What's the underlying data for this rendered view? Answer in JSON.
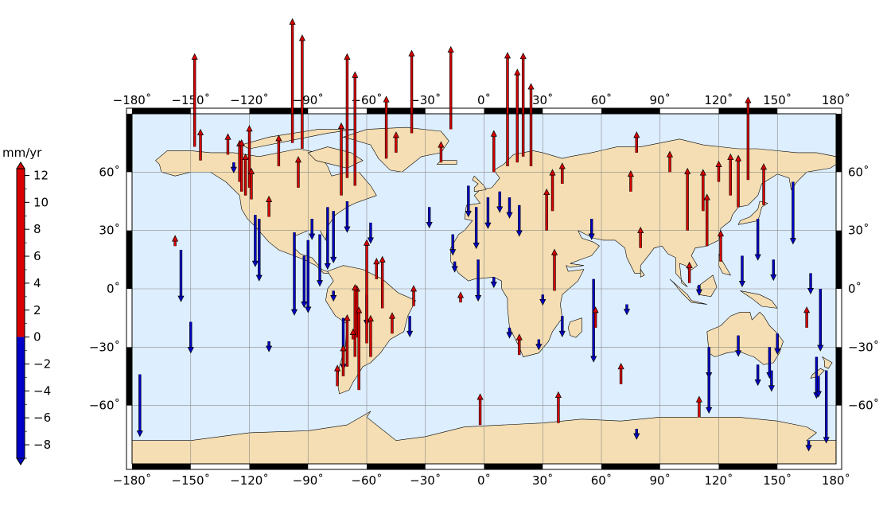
{
  "colorbar": {
    "unit": "mm/yr",
    "ticks": [
      12,
      10,
      8,
      6,
      4,
      2,
      0,
      -2,
      -4,
      -6,
      -8
    ],
    "range": [
      -9,
      12.5
    ],
    "positive_color": "#d80000",
    "negative_color": "#0000c8"
  },
  "map": {
    "lon_range": [
      -180,
      180
    ],
    "lat_range": [
      -90,
      90
    ],
    "x_ticks": [
      -180,
      -150,
      -120,
      -90,
      -60,
      -30,
      0,
      30,
      60,
      90,
      120,
      150,
      180
    ],
    "y_ticks": [
      60,
      30,
      0,
      -30,
      -60
    ],
    "ocean_color": "#ddeeff",
    "land_color": "#f5deb3",
    "grid": true
  },
  "chart_data": {
    "type": "scatter",
    "variable": "vertical velocity",
    "unit": "mm/yr",
    "points": [
      {
        "lon": -148,
        "lat": 73,
        "v": 9
      },
      {
        "lon": -145,
        "lat": 66,
        "v": 3
      },
      {
        "lon": -131,
        "lat": 69,
        "v": 2
      },
      {
        "lon": -128,
        "lat": 65,
        "v": -1
      },
      {
        "lon": -125,
        "lat": 55,
        "v": 4
      },
      {
        "lon": -124,
        "lat": 50,
        "v": 5
      },
      {
        "lon": -122,
        "lat": 48,
        "v": 4
      },
      {
        "lon": -120,
        "lat": 52,
        "v": 6
      },
      {
        "lon": -119,
        "lat": 46,
        "v": 3
      },
      {
        "lon": -117,
        "lat": 38,
        "v": -5
      },
      {
        "lon": -115,
        "lat": 36,
        "v": -6
      },
      {
        "lon": -110,
        "lat": 37,
        "v": 2
      },
      {
        "lon": -105,
        "lat": 63,
        "v": 3
      },
      {
        "lon": -98,
        "lat": 75,
        "v": 12
      },
      {
        "lon": -93,
        "lat": 72,
        "v": 11
      },
      {
        "lon": -95,
        "lat": 52,
        "v": 3
      },
      {
        "lon": -88,
        "lat": 36,
        "v": -2
      },
      {
        "lon": -97,
        "lat": 29,
        "v": -8
      },
      {
        "lon": -92,
        "lat": 17,
        "v": -5
      },
      {
        "lon": -90,
        "lat": 25,
        "v": -7
      },
      {
        "lon": -84,
        "lat": 28,
        "v": -5
      },
      {
        "lon": -80,
        "lat": 42,
        "v": -6
      },
      {
        "lon": -77,
        "lat": 40,
        "v": -5
      },
      {
        "lon": -73,
        "lat": 48,
        "v": 7
      },
      {
        "lon": -70,
        "lat": 57,
        "v": 12
      },
      {
        "lon": -66,
        "lat": 53,
        "v": 11
      },
      {
        "lon": -70,
        "lat": 45,
        "v": -3
      },
      {
        "lon": -58,
        "lat": 34,
        "v": -2
      },
      {
        "lon": -50,
        "lat": 67,
        "v": 6
      },
      {
        "lon": -45,
        "lat": 70,
        "v": 2
      },
      {
        "lon": -37,
        "lat": 80,
        "v": 8
      },
      {
        "lon": -22,
        "lat": 65,
        "v": 2
      },
      {
        "lon": -17,
        "lat": 82,
        "v": 8
      },
      {
        "lon": -28,
        "lat": 42,
        "v": -2
      },
      {
        "lon": -16,
        "lat": 28,
        "v": -2
      },
      {
        "lon": -8,
        "lat": 53,
        "v": -3
      },
      {
        "lon": -4,
        "lat": 42,
        "v": -4
      },
      {
        "lon": 2,
        "lat": 47,
        "v": -3
      },
      {
        "lon": 8,
        "lat": 50,
        "v": -2
      },
      {
        "lon": 5,
        "lat": 60,
        "v": 4
      },
      {
        "lon": 12,
        "lat": 63,
        "v": 11
      },
      {
        "lon": 17,
        "lat": 65,
        "v": 9
      },
      {
        "lon": 20,
        "lat": 68,
        "v": 10
      },
      {
        "lon": 24,
        "lat": 63,
        "v": 8
      },
      {
        "lon": 13,
        "lat": 47,
        "v": -2
      },
      {
        "lon": 18,
        "lat": 43,
        "v": -3
      },
      {
        "lon": 35,
        "lat": 40,
        "v": 4
      },
      {
        "lon": 40,
        "lat": 54,
        "v": 2
      },
      {
        "lon": 55,
        "lat": 36,
        "v": -2
      },
      {
        "lon": 75,
        "lat": 50,
        "v": 2
      },
      {
        "lon": 78,
        "lat": 70,
        "v": 2
      },
      {
        "lon": 80,
        "lat": 21,
        "v": 2
      },
      {
        "lon": 95,
        "lat": 60,
        "v": 2
      },
      {
        "lon": 104,
        "lat": 30,
        "v": 6
      },
      {
        "lon": 112,
        "lat": 40,
        "v": 4
      },
      {
        "lon": 120,
        "lat": 55,
        "v": 2
      },
      {
        "lon": 126,
        "lat": 48,
        "v": 4
      },
      {
        "lon": 130,
        "lat": 42,
        "v": 5
      },
      {
        "lon": 135,
        "lat": 56,
        "v": 8
      },
      {
        "lon": 140,
        "lat": 36,
        "v": -4
      },
      {
        "lon": 143,
        "lat": 43,
        "v": 4
      },
      {
        "lon": 158,
        "lat": 55,
        "v": -6
      },
      {
        "lon": 114,
        "lat": 22,
        "v": 5
      },
      {
        "lon": 121,
        "lat": 14,
        "v": 3
      },
      {
        "lon": 110,
        "lat": 2,
        "v": -1
      },
      {
        "lon": 132,
        "lat": 17,
        "v": -3
      },
      {
        "lon": 148,
        "lat": 15,
        "v": -2
      },
      {
        "lon": 167,
        "lat": 8,
        "v": -2
      },
      {
        "lon": 172,
        "lat": 0,
        "v": -6
      },
      {
        "lon": 165,
        "lat": -20,
        "v": 2
      },
      {
        "lon": 150,
        "lat": -23,
        "v": -2
      },
      {
        "lon": 146,
        "lat": -30,
        "v": -3
      },
      {
        "lon": 140,
        "lat": -39,
        "v": -2
      },
      {
        "lon": 130,
        "lat": -24,
        "v": -2
      },
      {
        "lon": 115,
        "lat": -30,
        "v": -3
      },
      {
        "lon": 115,
        "lat": -32,
        "v": -6
      },
      {
        "lon": 147,
        "lat": -42,
        "v": -2
      },
      {
        "lon": 170,
        "lat": -35,
        "v": -4
      },
      {
        "lon": 175,
        "lat": -42,
        "v": -7
      },
      {
        "lon": 171,
        "lat": -45,
        "v": -2
      },
      {
        "lon": 105,
        "lat": 3,
        "v": 2
      },
      {
        "lon": 56,
        "lat": 5,
        "v": -8
      },
      {
        "lon": 73,
        "lat": -8,
        "v": -1
      },
      {
        "lon": 57,
        "lat": -20,
        "v": 2
      },
      {
        "lon": 70,
        "lat": -49,
        "v": 2
      },
      {
        "lon": 38,
        "lat": -69,
        "v": 3
      },
      {
        "lon": -2,
        "lat": -70,
        "v": 3
      },
      {
        "lon": 110,
        "lat": -66,
        "v": 2
      },
      {
        "lon": 166,
        "lat": -78,
        "v": -1
      },
      {
        "lon": 78,
        "lat": -72,
        "v": -1
      },
      {
        "lon": 32,
        "lat": 30,
        "v": 4
      },
      {
        "lon": 28,
        "lat": -26,
        "v": -1
      },
      {
        "lon": 18,
        "lat": -34,
        "v": 2
      },
      {
        "lon": 36,
        "lat": -1,
        "v": 4
      },
      {
        "lon": 30,
        "lat": -3,
        "v": -1
      },
      {
        "lon": 40,
        "lat": -14,
        "v": -2
      },
      {
        "lon": 13,
        "lat": -20,
        "v": -1
      },
      {
        "lon": -3,
        "lat": 15,
        "v": -4
      },
      {
        "lon": 5,
        "lat": 6,
        "v": -1
      },
      {
        "lon": -15,
        "lat": 14,
        "v": -1
      },
      {
        "lon": -12,
        "lat": -7,
        "v": 1
      },
      {
        "lon": -47,
        "lat": -23,
        "v": 2
      },
      {
        "lon": -52,
        "lat": -10,
        "v": 5
      },
      {
        "lon": -60,
        "lat": -3,
        "v": -3
      },
      {
        "lon": -36,
        "lat": -9,
        "v": 2
      },
      {
        "lon": -38,
        "lat": -14,
        "v": -2
      },
      {
        "lon": -72,
        "lat": -15,
        "v": -5
      },
      {
        "lon": -77,
        "lat": -1,
        "v": -1
      },
      {
        "lon": -65,
        "lat": -25,
        "v": 5
      },
      {
        "lon": -60,
        "lat": -28,
        "v": 10
      },
      {
        "lon": -58,
        "lat": -35,
        "v": 4
      },
      {
        "lon": -66,
        "lat": -35,
        "v": 7
      },
      {
        "lon": -70,
        "lat": -40,
        "v": 5
      },
      {
        "lon": -72,
        "lat": -45,
        "v": 3
      },
      {
        "lon": -64,
        "lat": -52,
        "v": 8
      },
      {
        "lon": -67,
        "lat": -26,
        "v": 1
      },
      {
        "lon": -75,
        "lat": -50,
        "v": 2
      },
      {
        "lon": -158,
        "lat": 22,
        "v": 1
      },
      {
        "lon": -155,
        "lat": 20,
        "v": -5
      },
      {
        "lon": -150,
        "lat": -17,
        "v": -3
      },
      {
        "lon": -110,
        "lat": -27,
        "v": -1
      },
      {
        "lon": -176,
        "lat": -44,
        "v": -6
      },
      {
        "lon": -55,
        "lat": 5,
        "v": 2
      }
    ]
  }
}
